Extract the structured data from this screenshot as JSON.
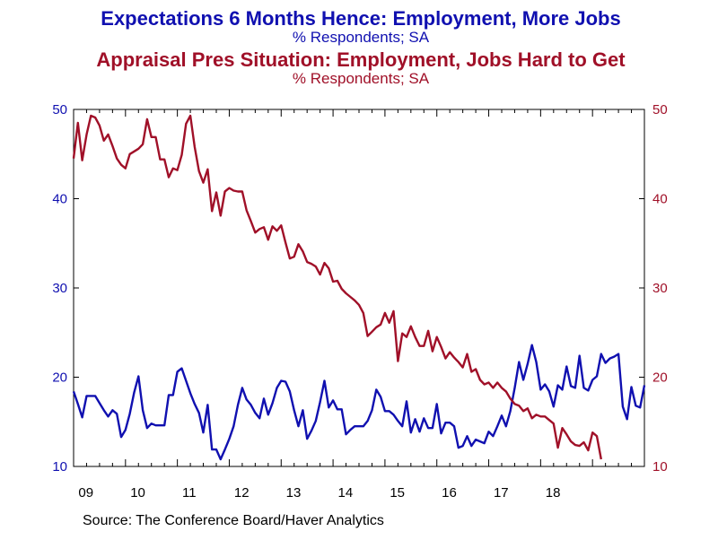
{
  "titles": {
    "blue_title": "Expectations 6 Months Hence: Employment, More Jobs",
    "blue_subtitle": "% Respondents; SA",
    "red_title": "Appraisal Pres Situation: Employment, Jobs Hard to Get",
    "red_subtitle": "% Respondents; SA"
  },
  "source": "Source:  The Conference Board/Haver Analytics",
  "chart_data": {
    "type": "line",
    "x_tick_labels": [
      "09",
      "10",
      "11",
      "12",
      "13",
      "14",
      "15",
      "16",
      "17",
      "18"
    ],
    "y_left": {
      "ylim": [
        10,
        50
      ],
      "ticks": [
        10,
        20,
        30,
        40,
        50
      ],
      "color": "#1010b0"
    },
    "y_right": {
      "ylim": [
        10,
        50
      ],
      "ticks": [
        10,
        20,
        30,
        40,
        50
      ],
      "color": "#a01028"
    },
    "grid": false,
    "legend": "none",
    "x_start": "2009-01",
    "series": [
      {
        "color": "#1010b0",
        "axis": "left",
        "values": [
          18.4,
          17.0,
          15.5,
          17.9,
          17.9,
          17.9,
          17.1,
          16.3,
          15.6,
          16.3,
          15.9,
          13.3,
          14.1,
          15.9,
          18.3,
          20.1,
          16.3,
          14.3,
          14.8,
          14.6,
          14.6,
          14.6,
          18.0,
          18.0,
          20.6,
          21.0,
          19.6,
          18.2,
          17.0,
          16.0,
          13.8,
          16.9,
          11.9,
          11.9,
          10.8,
          11.9,
          13.1,
          14.5,
          16.9,
          18.8,
          17.5,
          16.9,
          16.0,
          15.4,
          17.6,
          15.8,
          17.1,
          18.8,
          19.6,
          19.5,
          18.4,
          16.3,
          14.5,
          16.3,
          13.1,
          14.0,
          15.1,
          17.2,
          19.6,
          16.6,
          17.4,
          16.4,
          16.4,
          13.6,
          14.1,
          14.5,
          14.5,
          14.5,
          15.1,
          16.3,
          18.6,
          17.8,
          16.2,
          16.2,
          15.8,
          15.1,
          14.5,
          17.3,
          13.8,
          15.3,
          13.9,
          15.4,
          14.3,
          14.3,
          17.0,
          13.7,
          14.9,
          14.9,
          14.5,
          12.1,
          12.3,
          13.4,
          12.3,
          13.0,
          12.8,
          12.6,
          13.9,
          13.4,
          14.5,
          15.7,
          14.5,
          16.2,
          18.8,
          21.7,
          19.7,
          21.5,
          23.6,
          21.7,
          18.6,
          19.2,
          18.4,
          16.7,
          19.1,
          18.6,
          21.2,
          19.0,
          18.8,
          22.4,
          18.8,
          18.5,
          19.7,
          20.1,
          22.6,
          21.6,
          22.1,
          22.3,
          22.6,
          16.7,
          15.3,
          18.9,
          16.8,
          16.6,
          19.1
        ]
      },
      {
        "color": "#a01028",
        "axis": "right",
        "values": [
          44.5,
          48.5,
          44.3,
          47.2,
          49.3,
          49.1,
          48.2,
          46.5,
          47.2,
          45.9,
          44.5,
          43.8,
          43.4,
          45.0,
          45.3,
          45.6,
          46.1,
          48.9,
          46.9,
          46.9,
          44.4,
          44.4,
          42.4,
          43.4,
          43.2,
          44.9,
          48.4,
          49.3,
          45.8,
          43.1,
          41.8,
          43.3,
          38.6,
          40.7,
          38.1,
          40.8,
          41.2,
          40.9,
          40.8,
          40.8,
          38.7,
          37.5,
          36.2,
          36.6,
          36.8,
          35.4,
          36.9,
          36.4,
          37.0,
          35.1,
          33.3,
          33.5,
          34.9,
          34.1,
          32.9,
          32.7,
          32.4,
          31.5,
          32.8,
          32.2,
          30.7,
          30.8,
          29.9,
          29.4,
          29.0,
          28.6,
          28.1,
          27.2,
          24.6,
          25.1,
          25.6,
          25.9,
          27.2,
          26.1,
          27.4,
          21.8,
          24.9,
          24.5,
          25.7,
          24.5,
          23.5,
          23.5,
          25.2,
          22.9,
          24.5,
          23.4,
          22.1,
          22.8,
          22.2,
          21.7,
          21.1,
          22.6,
          20.6,
          20.9,
          19.7,
          19.2,
          19.4,
          18.8,
          19.4,
          18.8,
          18.4,
          17.6,
          17.0,
          16.8,
          16.2,
          16.5,
          15.4,
          15.8,
          15.6,
          15.6,
          15.2,
          14.8,
          12.1,
          14.3,
          13.6,
          12.8,
          12.4,
          12.3,
          12.7,
          11.8,
          13.8,
          13.4,
          10.8
        ]
      }
    ]
  }
}
